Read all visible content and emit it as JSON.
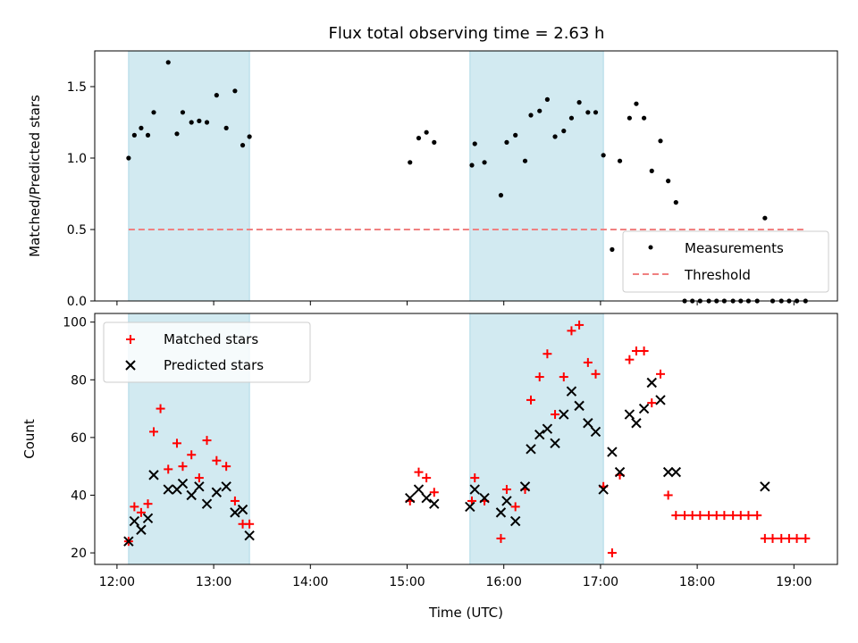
{
  "figure": {
    "title": "Flux total observing time = 2.63 h",
    "xlabel": "Time (UTC)",
    "xtick_labels": [
      "12:00",
      "13:00",
      "14:00",
      "15:00",
      "16:00",
      "17:00",
      "18:00",
      "19:00"
    ],
    "shade_color": "#add8e6",
    "shaded_intervals_hours": [
      [
        12.12,
        13.37
      ],
      [
        15.65,
        17.03
      ]
    ]
  },
  "chart_data": [
    {
      "type": "scatter",
      "ylabel": "Matched/Predicted stars",
      "ylim": [
        0,
        1.75
      ],
      "yticks": [
        "0.0",
        "0.5",
        "1.0",
        "1.5"
      ],
      "xlim_hours": [
        11.77,
        19.45
      ],
      "threshold": 0.5,
      "legend": {
        "placement": "lower-right",
        "entries": [
          "Measurements",
          "Threshold"
        ]
      },
      "colors": {
        "measurements": "#000000",
        "threshold": "#f08080"
      },
      "series": [
        {
          "name": "Measurements",
          "x_hours": [
            12.12,
            12.18,
            12.25,
            12.32,
            12.38,
            12.53,
            12.62,
            12.68,
            12.77,
            12.85,
            12.93,
            13.03,
            13.13,
            13.22,
            13.3,
            13.37,
            15.03,
            15.12,
            15.2,
            15.28,
            15.67,
            15.7,
            15.8,
            15.97,
            16.03,
            16.12,
            16.22,
            16.28,
            16.37,
            16.45,
            16.53,
            16.62,
            16.7,
            16.78,
            16.87,
            16.95,
            17.03,
            17.12,
            17.2,
            17.3,
            17.37,
            17.45,
            17.53,
            17.62,
            17.7,
            17.78,
            17.87,
            17.95,
            18.03,
            18.12,
            18.2,
            18.28,
            18.37,
            18.45,
            18.53,
            18.62,
            18.7,
            18.78,
            18.87,
            18.95,
            19.03,
            19.12
          ],
          "y": [
            1.0,
            1.16,
            1.21,
            1.16,
            1.32,
            1.67,
            1.17,
            1.32,
            1.25,
            1.26,
            1.25,
            1.44,
            1.21,
            1.47,
            1.09,
            1.15,
            0.97,
            1.14,
            1.18,
            1.11,
            0.95,
            1.1,
            0.97,
            0.74,
            1.11,
            1.16,
            0.98,
            1.3,
            1.33,
            1.41,
            1.15,
            1.19,
            1.28,
            1.39,
            1.32,
            1.32,
            1.02,
            0.36,
            0.98,
            1.28,
            1.38,
            1.28,
            0.91,
            1.12,
            0.84,
            0.69,
            0.0,
            0.0,
            0.0,
            0.0,
            0.0,
            0.0,
            0.0,
            0.0,
            0.0,
            0.0,
            0.58,
            0.0,
            0.0,
            0.0,
            0.0,
            0.0
          ]
        }
      ]
    },
    {
      "type": "scatter",
      "ylabel": "Count",
      "ylim": [
        16,
        103
      ],
      "yticks": [
        "20",
        "40",
        "60",
        "80",
        "100"
      ],
      "xlim_hours": [
        11.77,
        19.45
      ],
      "legend": {
        "placement": "upper-left",
        "entries": [
          "Matched stars",
          "Predicted stars"
        ]
      },
      "colors": {
        "matched": "#ff0000",
        "predicted": "#000000"
      },
      "series": [
        {
          "name": "Matched stars",
          "x_hours": [
            12.12,
            12.18,
            12.25,
            12.32,
            12.38,
            12.45,
            12.53,
            12.62,
            12.68,
            12.77,
            12.85,
            12.93,
            13.03,
            13.13,
            13.22,
            13.3,
            13.37,
            15.03,
            15.12,
            15.2,
            15.28,
            15.67,
            15.7,
            15.8,
            15.97,
            16.03,
            16.12,
            16.22,
            16.28,
            16.37,
            16.45,
            16.53,
            16.62,
            16.7,
            16.78,
            16.87,
            16.95,
            17.03,
            17.12,
            17.2,
            17.3,
            17.37,
            17.45,
            17.53,
            17.62,
            17.7,
            17.78,
            17.87,
            17.95,
            18.03,
            18.12,
            18.2,
            18.28,
            18.37,
            18.45,
            18.53,
            18.62,
            18.7,
            18.78,
            18.87,
            18.95,
            19.03,
            19.12
          ],
          "y": [
            24,
            36,
            34,
            37,
            62,
            70,
            49,
            58,
            50,
            54,
            46,
            59,
            52,
            50,
            38,
            30,
            30,
            38,
            48,
            46,
            41,
            38,
            46,
            38,
            25,
            42,
            36,
            42,
            73,
            81,
            89,
            68,
            81,
            97,
            99,
            86,
            82,
            43,
            20,
            47,
            87,
            90,
            90,
            72,
            82,
            40,
            33,
            33,
            33,
            33,
            33,
            33,
            33,
            33,
            33,
            33,
            33,
            25,
            25,
            25,
            25,
            25,
            25
          ]
        },
        {
          "name": "Predicted stars",
          "x_hours": [
            12.12,
            12.18,
            12.25,
            12.32,
            12.38,
            12.53,
            12.62,
            12.68,
            12.77,
            12.85,
            12.93,
            13.03,
            13.13,
            13.22,
            13.3,
            13.37,
            15.03,
            15.12,
            15.2,
            15.28,
            15.65,
            15.7,
            15.8,
            15.97,
            16.03,
            16.12,
            16.22,
            16.28,
            16.37,
            16.45,
            16.53,
            16.62,
            16.7,
            16.78,
            16.87,
            16.95,
            17.03,
            17.12,
            17.2,
            17.3,
            17.37,
            17.45,
            17.53,
            17.62,
            17.7,
            17.78,
            18.7
          ],
          "y": [
            24,
            31,
            28,
            32,
            47,
            42,
            42,
            44,
            40,
            43,
            37,
            41,
            43,
            34,
            35,
            26,
            39,
            42,
            39,
            37,
            36,
            42,
            39,
            34,
            38,
            31,
            43,
            56,
            61,
            63,
            58,
            68,
            76,
            71,
            65,
            62,
            42,
            55,
            48,
            68,
            65,
            70,
            79,
            73,
            48,
            48,
            43
          ]
        }
      ]
    }
  ]
}
